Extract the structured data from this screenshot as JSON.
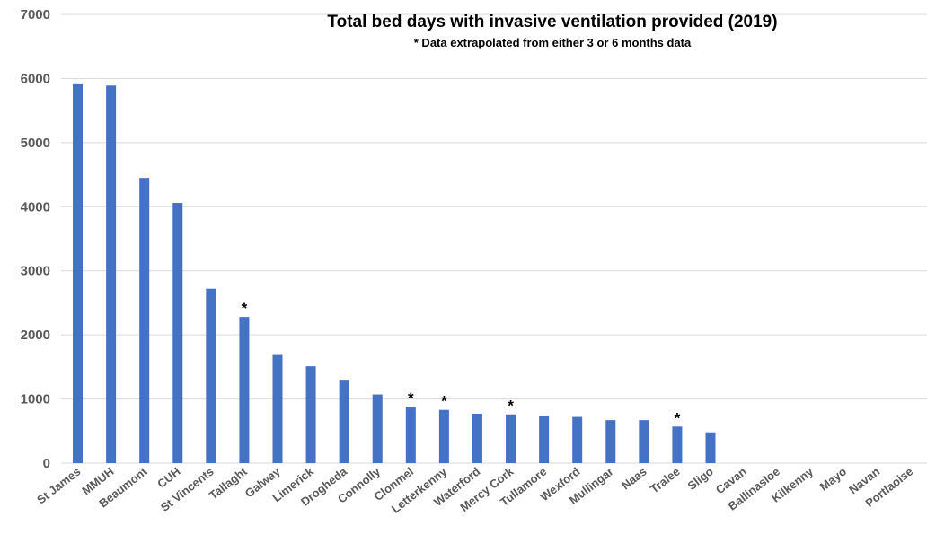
{
  "chart_data": {
    "type": "bar",
    "title": "Total bed days with invasive ventilation provided (2019)",
    "subtitle": "* Data extrapolated from either 3 or 6 months data",
    "xlabel": "",
    "ylabel": "",
    "ylim": [
      0,
      7000
    ],
    "yticks": [
      "0",
      "1000",
      "2000",
      "3000",
      "4000",
      "5000",
      "6000",
      "7000"
    ],
    "grid": true,
    "legend": "none",
    "bar_color": "#4472c4",
    "annotation_symbol": "*",
    "categories": [
      "St James",
      "MMUH",
      "Beaumont",
      "CUH",
      "St Vincents",
      "Tallaght",
      "Galway",
      "Limerick",
      "Drogheda",
      "Connolly",
      "Clonmel",
      "Letterkenny",
      "Waterford",
      "Mercy Cork",
      "Tullamore",
      "Wexford",
      "Mullingar",
      "Naas",
      "Tralee",
      "Sligo",
      "Cavan",
      "Ballinasloe",
      "Kilkenny",
      "Mayo",
      "Navan",
      "Portlaoise"
    ],
    "values": [
      5910,
      5890,
      4450,
      4060,
      2720,
      2280,
      1700,
      1510,
      1300,
      1070,
      880,
      830,
      770,
      760,
      740,
      720,
      670,
      670,
      570,
      480,
      0,
      0,
      0,
      0,
      0,
      0
    ],
    "extrapolated": [
      false,
      false,
      false,
      false,
      false,
      true,
      false,
      false,
      false,
      false,
      true,
      true,
      false,
      true,
      false,
      false,
      false,
      false,
      true,
      false,
      false,
      false,
      false,
      false,
      false,
      false
    ]
  }
}
